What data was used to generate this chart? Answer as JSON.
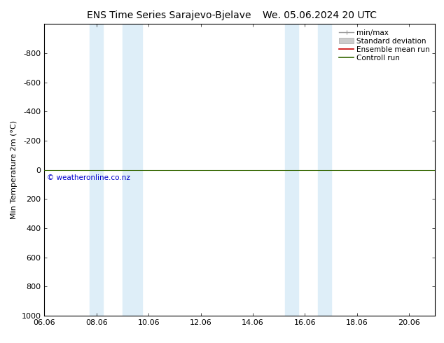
{
  "title_left": "ENS Time Series Sarajevo-Bjelave",
  "title_right": "We. 05.06.2024 20 UTC",
  "ylabel": "Min Temperature 2m (°C)",
  "ylim_top": -1000,
  "ylim_bottom": 1000,
  "yticks": [
    -800,
    -600,
    -400,
    -200,
    0,
    200,
    400,
    600,
    800,
    1000
  ],
  "xlim_left": 6.0,
  "xlim_right": 21.0,
  "xticks": [
    6,
    8,
    10,
    12,
    14,
    16,
    18,
    20
  ],
  "xticklabels": [
    "06.06",
    "08.06",
    "10.06",
    "12.06",
    "14.06",
    "16.06",
    "18.06",
    "20.06"
  ],
  "night_bands": [
    [
      7.75,
      8.25
    ],
    [
      9.0,
      9.75
    ],
    [
      15.25,
      15.75
    ],
    [
      16.5,
      17.0
    ]
  ],
  "night_color": "#deeef8",
  "control_run_y": 0,
  "control_run_color": "#336600",
  "ensemble_mean_color": "#cc0000",
  "copyright_text": "© weatheronline.co.nz",
  "copyright_color": "#0000cc",
  "background_color": "#ffffff",
  "legend_labels": [
    "min/max",
    "Standard deviation",
    "Ensemble mean run",
    "Controll run"
  ],
  "legend_colors": [
    "#999999",
    "#cccccc",
    "#cc0000",
    "#336600"
  ],
  "title_fontsize": 10,
  "axis_label_fontsize": 8,
  "tick_fontsize": 8,
  "legend_fontsize": 7.5
}
